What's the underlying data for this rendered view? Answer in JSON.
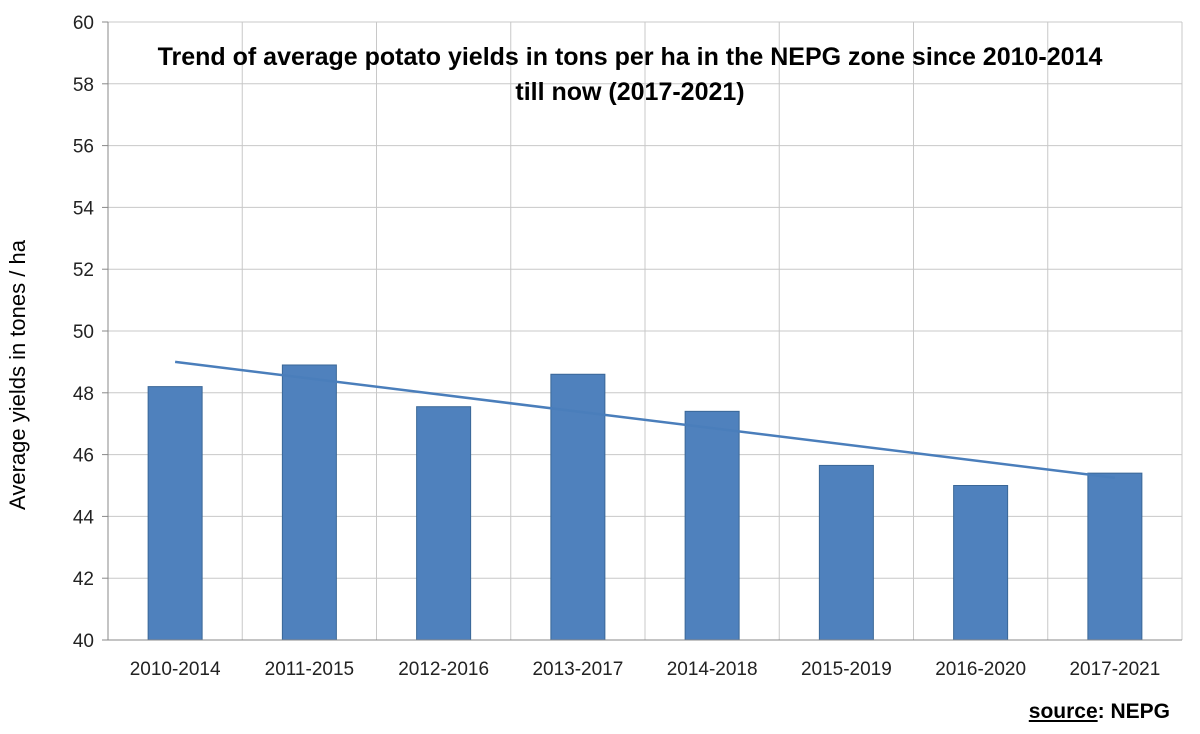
{
  "chart_data": {
    "type": "bar",
    "title_lines": [
      "Trend of average  potato yields in tons per ha in the NEPG zone since 2010-2014",
      "till now (2017-2021)"
    ],
    "xlabel": "",
    "ylabel": "Average yields in tones / ha",
    "categories": [
      "2010-2014",
      "2011-2015",
      "2012-2016",
      "2013-2017",
      "2014-2018",
      "2015-2019",
      "2016-2020",
      "2017-2021"
    ],
    "values": [
      48.2,
      48.9,
      47.55,
      48.6,
      47.4,
      45.65,
      45.0,
      45.4
    ],
    "ylim": [
      40,
      60
    ],
    "yticks": [
      40,
      42,
      44,
      46,
      48,
      50,
      52,
      54,
      56,
      58,
      60
    ],
    "grid": true,
    "trendline": {
      "type": "linear",
      "start": 49.0,
      "end": 45.25
    },
    "colors": {
      "bar": "#4f81bd",
      "bar_stroke": "#3a6797",
      "trend": "#4a7ebb",
      "grid": "#c8c8c8",
      "axis": "#888888"
    }
  },
  "source": {
    "label": "source",
    "value": ": NEPG"
  }
}
